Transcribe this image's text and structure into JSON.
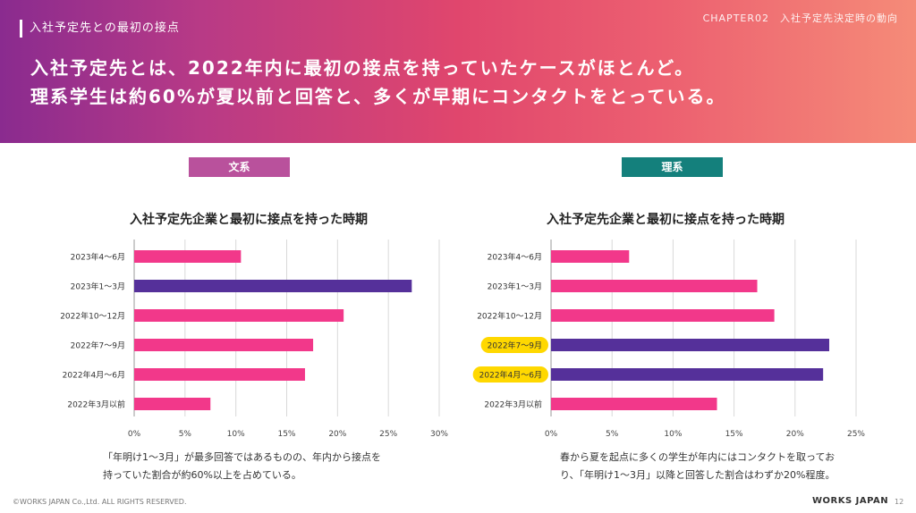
{
  "header": {
    "section_label": "入社予定先との最初の接点",
    "chapter": "CHAPTER02　入社予定先決定時の動向",
    "headline_line1": "入社予定先とは、2022年内に最初の接点を持っていたケースがほとんど。",
    "headline_line2": "理系学生は約60%が夏以前と回答と、多くが早期にコンタクトをとっている。"
  },
  "tags": {
    "left": "文系",
    "right": "理系"
  },
  "colors": {
    "bar_pink": "#f2388a",
    "bar_purple": "#55309a",
    "highlight": "#ffd800",
    "tag_left": "#b9519c",
    "tag_right": "#14807c"
  },
  "chart_data": [
    {
      "type": "bar",
      "orientation": "horizontal",
      "title": "入社予定先企業と最初に接点を持った時期",
      "categories": [
        "2023年4～6月",
        "2023年1～3月",
        "2022年10～12月",
        "2022年7～9月",
        "2022年4月～6月",
        "2022年3月以前"
      ],
      "values": [
        10.5,
        27.3,
        20.6,
        17.6,
        16.8,
        7.5
      ],
      "highlighted_bars": [
        1
      ],
      "highlighted_labels": [],
      "xlim": [
        0,
        30
      ],
      "xticks": [
        0,
        5,
        10,
        15,
        20,
        25,
        30
      ],
      "tick_format": "%",
      "grid": true
    },
    {
      "type": "bar",
      "orientation": "horizontal",
      "title": "入社予定先企業と最初に接点を持った時期",
      "categories": [
        "2023年4～6月",
        "2023年1～3月",
        "2022年10～12月",
        "2022年7～9月",
        "2022年4月～6月",
        "2022年3月以前"
      ],
      "values": [
        6.4,
        16.9,
        18.3,
        22.8,
        22.3,
        13.6
      ],
      "highlighted_bars": [
        3,
        4
      ],
      "highlighted_labels": [
        3,
        4
      ],
      "xlim": [
        0,
        25
      ],
      "xticks": [
        0,
        5,
        10,
        15,
        20,
        25
      ],
      "tick_format": "%",
      "grid": true
    }
  ],
  "notes": {
    "left_line1": "「年明け1～3月」が最多回答ではあるものの、年内から接点を",
    "left_line2": "持っていた割合が約60%以上を占めている。",
    "right_line1": "春から夏を起点に多くの学生が年内にはコンタクトを取ってお",
    "right_line2": "り、「年明け1～3月」以降と回答した割合はわずか20%程度。"
  },
  "footer": {
    "copyright": "©WORKS JAPAN Co.,Ltd. ALL RIGHTS RESERVED.",
    "logo": "WORKS JAPAN",
    "page": "12"
  }
}
